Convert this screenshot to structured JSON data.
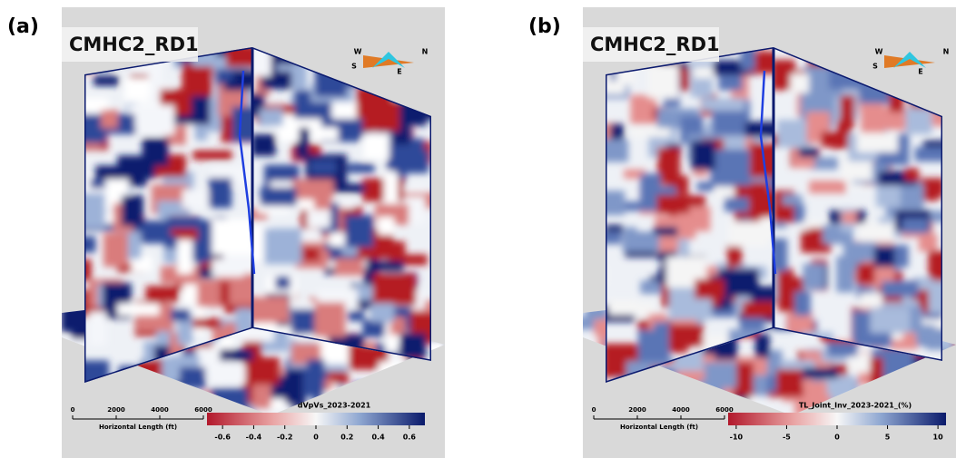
{
  "panels": [
    {
      "label": "(a)",
      "well": "CMHC2_RD1",
      "compass": {
        "w": "W",
        "n": "N",
        "s": "S",
        "e": "E"
      },
      "scale_bar": {
        "ticks": [
          0,
          2000,
          4000,
          6000
        ],
        "lim": [
          0,
          6000
        ],
        "label": "Horizontal Length (ft)"
      },
      "colorbar": {
        "title": "dVpVs_2023-2021",
        "lim": [
          -0.7,
          0.7
        ],
        "ticks": [
          -0.6,
          -0.4,
          -0.2,
          0,
          0.2,
          0.4,
          0.6
        ]
      }
    },
    {
      "label": "(b)",
      "well": "CMHC2_RD1",
      "compass": {
        "w": "W",
        "n": "N",
        "s": "S",
        "e": "E"
      },
      "scale_bar": {
        "ticks": [
          0,
          2000,
          4000,
          6000
        ],
        "lim": [
          0,
          6000
        ],
        "label": "Horizontal Length (ft)"
      },
      "colorbar": {
        "title": "TL_Joint_Inv_2023-2021_(%)",
        "lim": [
          -10.8,
          10.8
        ],
        "ticks": [
          -10,
          -5,
          0,
          5,
          10
        ]
      }
    }
  ]
}
